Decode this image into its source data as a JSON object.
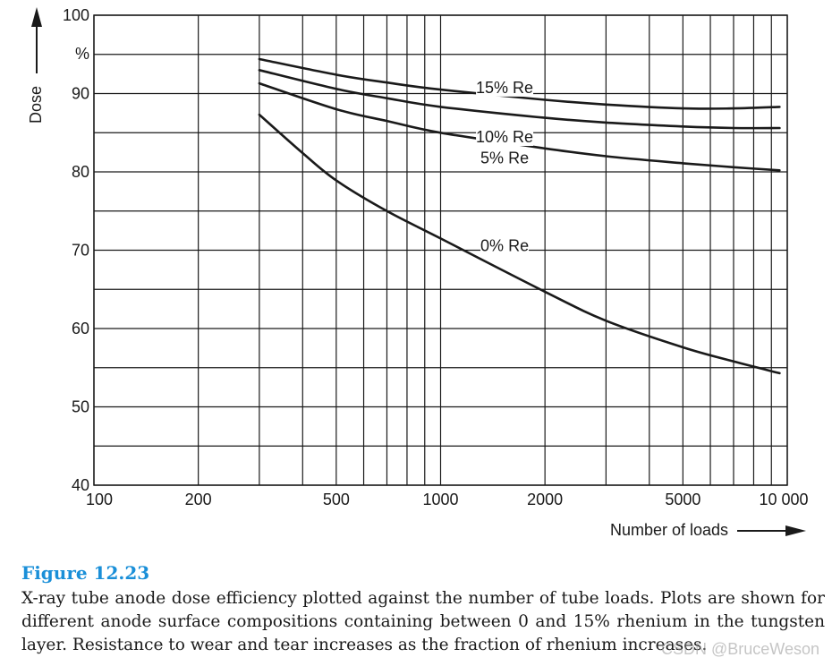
{
  "chart_data": {
    "type": "line",
    "xlabel": "Number of loads",
    "ylabel": "Dose",
    "y_unit_label": "%",
    "x_scale": "log",
    "xlim": [
      100,
      10000
    ],
    "ylim": [
      40,
      100
    ],
    "x_tick_labels": [
      {
        "value": 100,
        "label": "100"
      },
      {
        "value": 200,
        "label": "200"
      },
      {
        "value": 500,
        "label": "500"
      },
      {
        "value": 1000,
        "label": "1000"
      },
      {
        "value": 2000,
        "label": "2000"
      },
      {
        "value": 5000,
        "label": "5000"
      },
      {
        "value": 10000,
        "label": "10 000"
      }
    ],
    "y_tick_labels": [
      {
        "value": 100,
        "label": "100"
      },
      {
        "value": 90,
        "label": "90"
      },
      {
        "value": 80,
        "label": "80"
      },
      {
        "value": 70,
        "label": "70"
      },
      {
        "value": 60,
        "label": "60"
      },
      {
        "value": 50,
        "label": "50"
      },
      {
        "value": 40,
        "label": "40"
      }
    ],
    "x_grid": [
      100,
      200,
      300,
      400,
      500,
      600,
      700,
      800,
      900,
      1000,
      2000,
      3000,
      4000,
      5000,
      6000,
      7000,
      8000,
      9000,
      10000
    ],
    "y_grid": [
      40,
      45,
      50,
      55,
      60,
      65,
      70,
      75,
      80,
      85,
      90,
      95,
      100
    ],
    "grid": true,
    "legend": "inline labels on curves",
    "series": [
      {
        "name": "15% Re",
        "label_at": [
          1530,
          90.3
        ],
        "x": [
          300,
          500,
          700,
          1000,
          2000,
          3000,
          5000,
          7000,
          9500
        ],
        "y": [
          94.4,
          92.4,
          91.4,
          90.5,
          89.2,
          88.6,
          88.1,
          88.1,
          88.3
        ]
      },
      {
        "name": "10% Re",
        "label_at": [
          1530,
          84.0
        ],
        "x": [
          300,
          500,
          700,
          1000,
          2000,
          3000,
          5000,
          7000,
          9500
        ],
        "y": [
          93.0,
          90.6,
          89.4,
          88.3,
          86.9,
          86.3,
          85.8,
          85.6,
          85.6
        ]
      },
      {
        "name": "5% Re",
        "label_at": [
          1530,
          81.3
        ],
        "x": [
          300,
          500,
          700,
          1000,
          2000,
          3000,
          5000,
          7000,
          9500
        ],
        "y": [
          91.3,
          88.0,
          86.5,
          85.0,
          83.0,
          82.0,
          81.1,
          80.6,
          80.2
        ]
      },
      {
        "name": "0% Re",
        "label_at": [
          1530,
          70.1
        ],
        "x": [
          300,
          400,
          500,
          700,
          1000,
          2000,
          3000,
          5000,
          7000,
          9500
        ],
        "y": [
          87.3,
          82.4,
          78.9,
          75.0,
          71.5,
          64.7,
          61.0,
          57.6,
          55.8,
          54.3
        ]
      }
    ]
  },
  "caption": {
    "title": "Figure 12.23",
    "text": "X-ray tube anode dose efficiency plotted against the number of tube loads. Plots are shown for different anode surface compositions containing between 0 and 15% rhenium in the tungsten layer. Resistance to wear and tear increases as the fraction of rhenium increases."
  },
  "watermark": "CSDN @BruceWeson"
}
